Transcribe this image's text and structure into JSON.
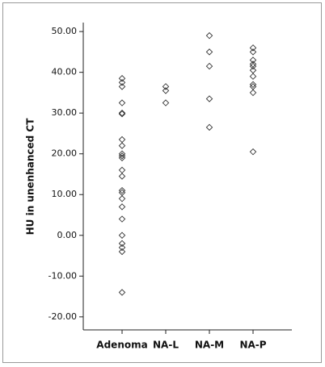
{
  "chart_data": {
    "type": "strip",
    "y_label": "HU in unenhanced CT",
    "categories": [
      "Adenoma",
      "NA-L",
      "NA-M",
      "NA-P"
    ],
    "values": [
      [
        38.5,
        37.5,
        36.5,
        32.5,
        30,
        29.8,
        23.5,
        22,
        20,
        19.5,
        19,
        16,
        14.5,
        11,
        10.5,
        9,
        7,
        4,
        0,
        -2,
        -3,
        -4,
        -14
      ],
      [
        36.5,
        35.5,
        32.5
      ],
      [
        49,
        45,
        41.5,
        33.5,
        26.5
      ],
      [
        46,
        45,
        43,
        42,
        41.5,
        40.5,
        39,
        37,
        36.5,
        35,
        20.5
      ]
    ],
    "marker": "diamond",
    "color": "#333333",
    "ylim": [
      -23.2,
      52.2
    ],
    "yticks": [
      {
        "value": 50,
        "label": "50.00"
      },
      {
        "value": 40,
        "label": "40.00"
      },
      {
        "value": 30,
        "label": "30.00"
      },
      {
        "value": 20,
        "label": "20.00"
      },
      {
        "value": 10,
        "label": "10.00"
      },
      {
        "value": 0,
        "label": "0.00"
      },
      {
        "value": -10,
        "label": "-10.00"
      },
      {
        "value": -20,
        "label": "-20.00"
      }
    ]
  }
}
